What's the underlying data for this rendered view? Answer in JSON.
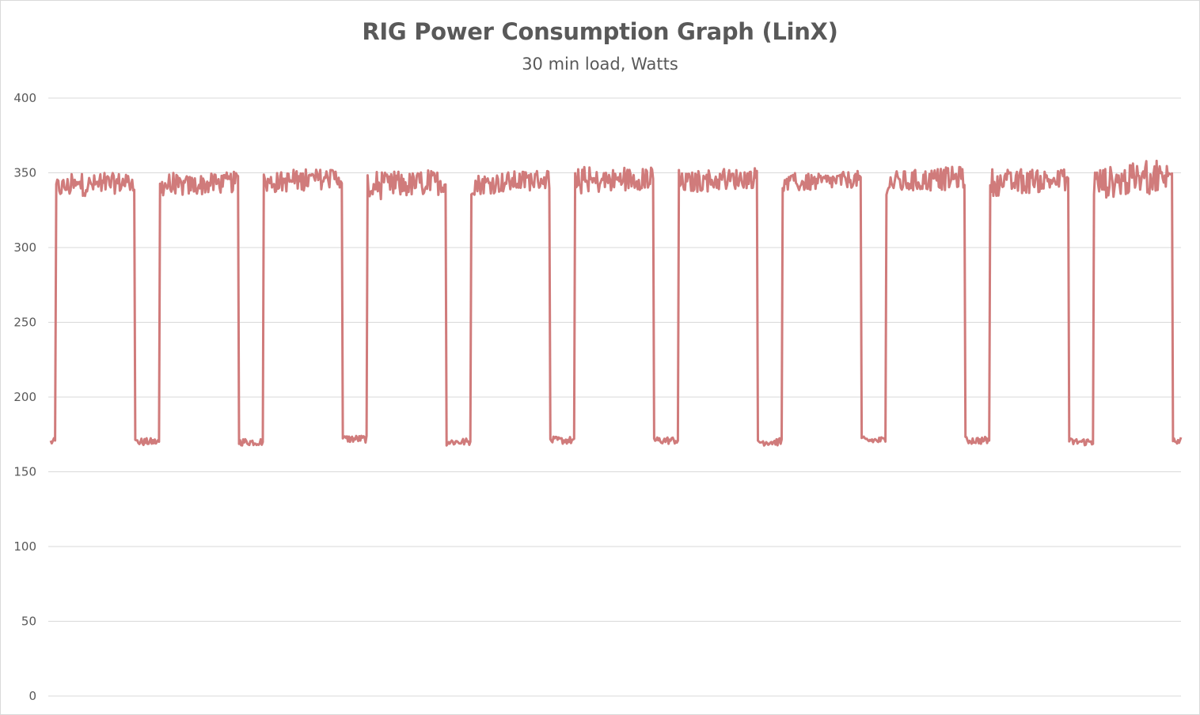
{
  "chart_data": {
    "type": "line",
    "title": "RIG Power Consumption Graph (LinX)",
    "subtitle": "30 min load, Watts",
    "xlabel": "",
    "ylabel": "",
    "ylim": [
      0,
      400
    ],
    "yticks": [
      0,
      50,
      100,
      150,
      200,
      250,
      300,
      350,
      400
    ],
    "grid": true,
    "legend": "none",
    "series": [
      {
        "color": "#d07b7b",
        "pattern": "alternating load/idle cycles",
        "segments": [
          {
            "state": "idle",
            "level": 170
          },
          {
            "state": "load",
            "level": 340,
            "peak": 350
          },
          {
            "state": "idle",
            "level": 170
          },
          {
            "state": "load",
            "level": 340,
            "peak": 350
          },
          {
            "state": "idle",
            "level": 170
          },
          {
            "state": "load",
            "level": 343,
            "peak": 353
          },
          {
            "state": "idle",
            "level": 172
          },
          {
            "state": "load",
            "level": 340,
            "peak": 352
          },
          {
            "state": "idle",
            "level": 170
          },
          {
            "state": "load",
            "level": 342,
            "peak": 352
          },
          {
            "state": "idle",
            "level": 171
          },
          {
            "state": "load",
            "level": 343,
            "peak": 354
          },
          {
            "state": "idle",
            "level": 171
          },
          {
            "state": "load",
            "level": 343,
            "peak": 353
          },
          {
            "state": "idle",
            "level": 170
          },
          {
            "state": "load",
            "level": 342,
            "peak": 350
          },
          {
            "state": "idle",
            "level": 171
          },
          {
            "state": "load",
            "level": 343,
            "peak": 354
          },
          {
            "state": "idle",
            "level": 171
          },
          {
            "state": "load",
            "level": 342,
            "peak": 353
          },
          {
            "state": "idle",
            "level": 170
          },
          {
            "state": "load",
            "level": 343,
            "peak": 358
          },
          {
            "state": "idle",
            "level": 171
          }
        ]
      }
    ]
  }
}
